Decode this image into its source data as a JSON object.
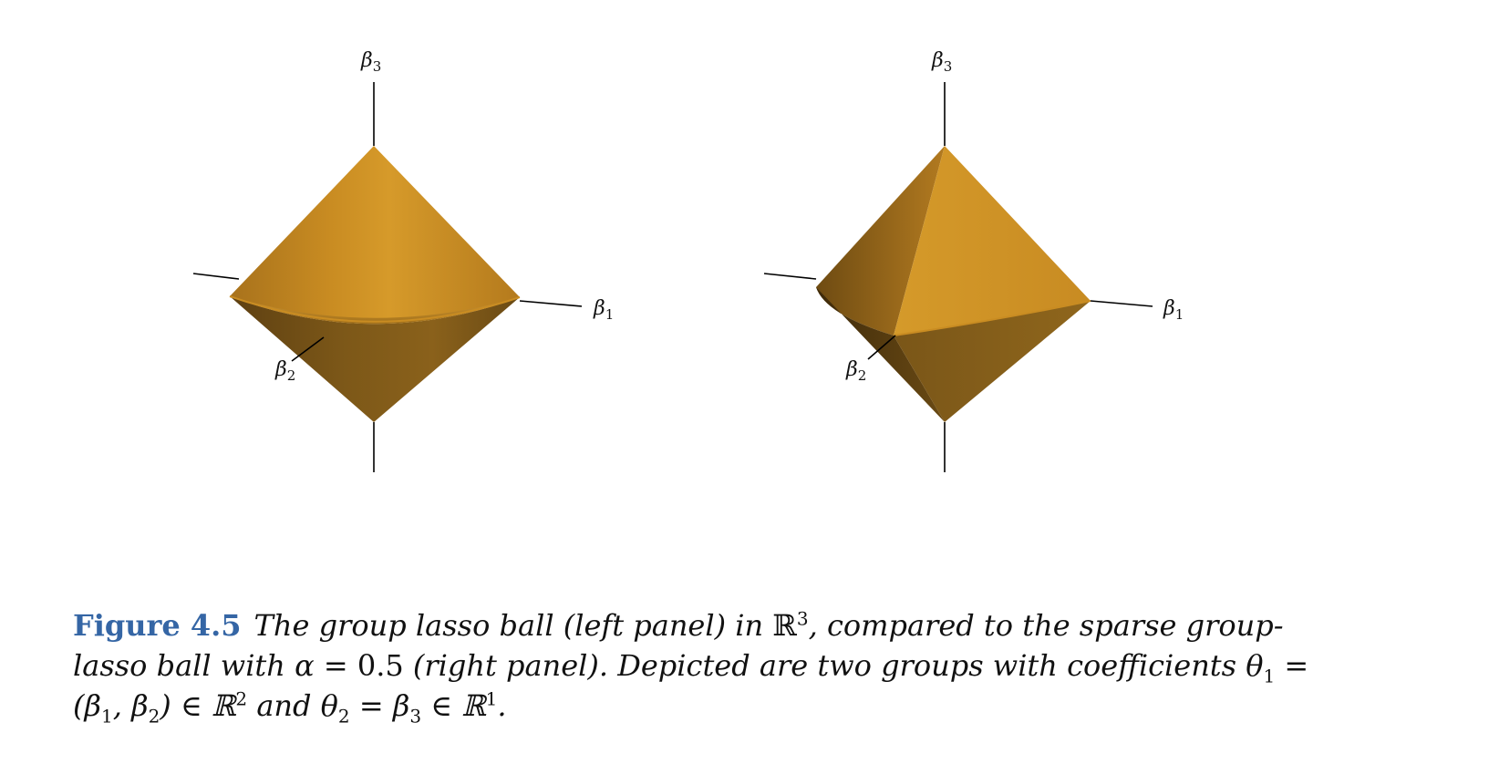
{
  "figure": {
    "left_panel": {
      "name": "group lasso ball",
      "axis_labels": {
        "b3": "β",
        "b3_sub": "3",
        "b1": "β",
        "b1_sub": "1",
        "b2": "β",
        "b2_sub": "2"
      }
    },
    "right_panel": {
      "name": "sparse group-lasso ball",
      "axis_labels": {
        "b3": "β",
        "b3_sub": "3",
        "b1": "β",
        "b1_sub": "1",
        "b2": "β",
        "b2_sub": "2"
      }
    },
    "colors": {
      "surface": "#d39426",
      "surface_dark": "#7a5416",
      "axis": "#000000",
      "caption_label": "#3566a5"
    }
  },
  "caption": {
    "label": "Figure 4.5",
    "line1_a": "The group lasso ball (left panel) in ",
    "line1_R": "ℝ",
    "line1_sup": "3",
    "line1_b": ", compared to the sparse group-",
    "line2_a": "lasso ball with α = ",
    "line2_num": "0.5",
    "line2_b": " (right panel). Depicted are two groups with coefficients θ",
    "line2_sub": "1",
    "line2_c": " =",
    "line3_a": "(β",
    "line3_sub1": "1",
    "line3_b": ", β",
    "line3_sub2": "2",
    "line3_c": ") ∈ ℝ",
    "line3_sup1": "2",
    "line3_d": " and θ",
    "line3_sub3": "2",
    "line3_e": " = β",
    "line3_sub4": "3",
    "line3_f": " ∈ ℝ",
    "line3_sup2": "1",
    "line3_g": "."
  }
}
